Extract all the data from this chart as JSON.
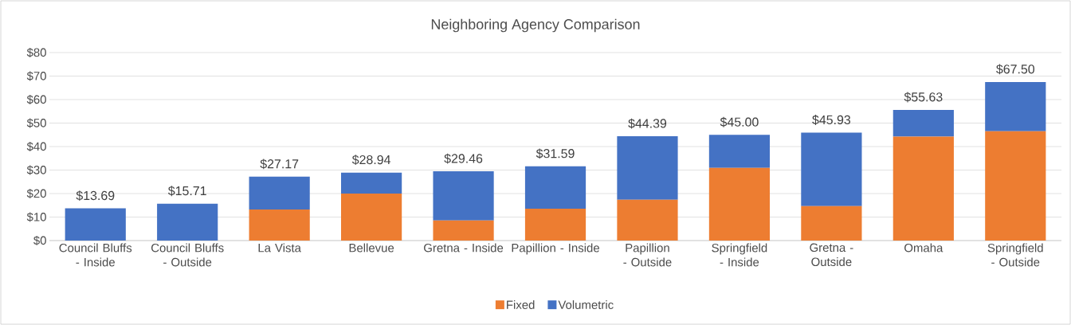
{
  "chart_data": {
    "type": "bar",
    "title": "Neighboring Agency Comparison",
    "stacked": true,
    "categories": [
      "Council Bluffs - Inside",
      "Council Bluffs - Outside",
      "La Vista",
      "Bellevue",
      "Gretna - Inside",
      "Papillion - Inside",
      "Papillion - Outside",
      "Springfield - Inside",
      "Gretna - Outside",
      "Omaha",
      "Springfield - Outside"
    ],
    "series": [
      {
        "name": "Fixed",
        "color": "#ed7d31",
        "values": [
          0,
          0,
          13.2,
          20.0,
          8.6,
          13.6,
          17.4,
          30.9,
          14.7,
          44.2,
          46.5
        ]
      },
      {
        "name": "Volumetric",
        "color": "#4472c4",
        "values": [
          13.69,
          15.71,
          13.97,
          8.94,
          20.86,
          17.99,
          26.99,
          14.1,
          31.23,
          11.43,
          21.0
        ]
      }
    ],
    "totals": [
      "$13.69",
      "$15.71",
      "$27.17",
      "$28.94",
      "$29.46",
      "$31.59",
      "$44.39",
      "$45.00",
      "$45.93",
      "$55.63",
      "$67.50"
    ],
    "ylim": [
      0,
      80
    ],
    "yticks": [
      {
        "value": 0,
        "label": "$0"
      },
      {
        "value": 10,
        "label": "$10"
      },
      {
        "value": 20,
        "label": "$20"
      },
      {
        "value": 30,
        "label": "$30"
      },
      {
        "value": 40,
        "label": "$40"
      },
      {
        "value": 50,
        "label": "$50"
      },
      {
        "value": 60,
        "label": "$60"
      },
      {
        "value": 70,
        "label": "$70"
      },
      {
        "value": 80,
        "label": "$80"
      }
    ],
    "grid": "y",
    "legend": "bottom"
  }
}
